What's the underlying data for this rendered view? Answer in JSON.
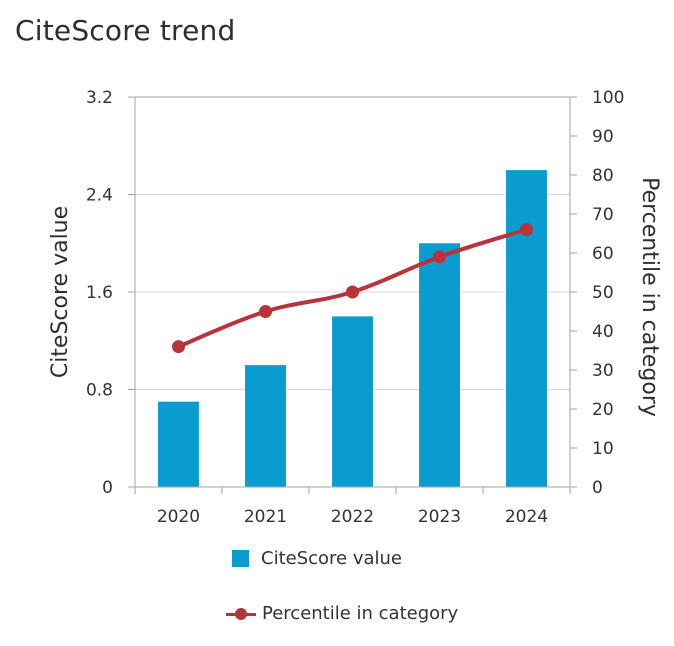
{
  "title": "CiteScore trend",
  "colors": {
    "bar": "#0a9ccf",
    "line": "#b8343a",
    "grid": "#d9d9d9",
    "axis": "#a6a6a6"
  },
  "chart_data": {
    "type": "bar",
    "categories": [
      "2020",
      "2021",
      "2022",
      "2023",
      "2024"
    ],
    "series": [
      {
        "name": "CiteScore value",
        "kind": "bar",
        "axis": "left",
        "values": [
          0.7,
          1.0,
          1.4,
          2.0,
          2.6
        ]
      },
      {
        "name": "Percentile in category",
        "kind": "line",
        "axis": "right",
        "values": [
          36,
          45,
          50,
          59,
          66
        ]
      }
    ],
    "ylabel": "CiteScore value",
    "y2label": "Percentile in category",
    "ylim": [
      0,
      3.2
    ],
    "y2lim": [
      0,
      100
    ],
    "yticks": [
      "0",
      "0.8",
      "1.6",
      "2.4",
      "3.2"
    ],
    "y2ticks": [
      "0",
      "10",
      "20",
      "30",
      "40",
      "50",
      "60",
      "70",
      "80",
      "90",
      "100"
    ],
    "grid": true,
    "legend_position": "bottom"
  },
  "legend": {
    "bar_label": "CiteScore value",
    "line_label": "Percentile in category"
  }
}
